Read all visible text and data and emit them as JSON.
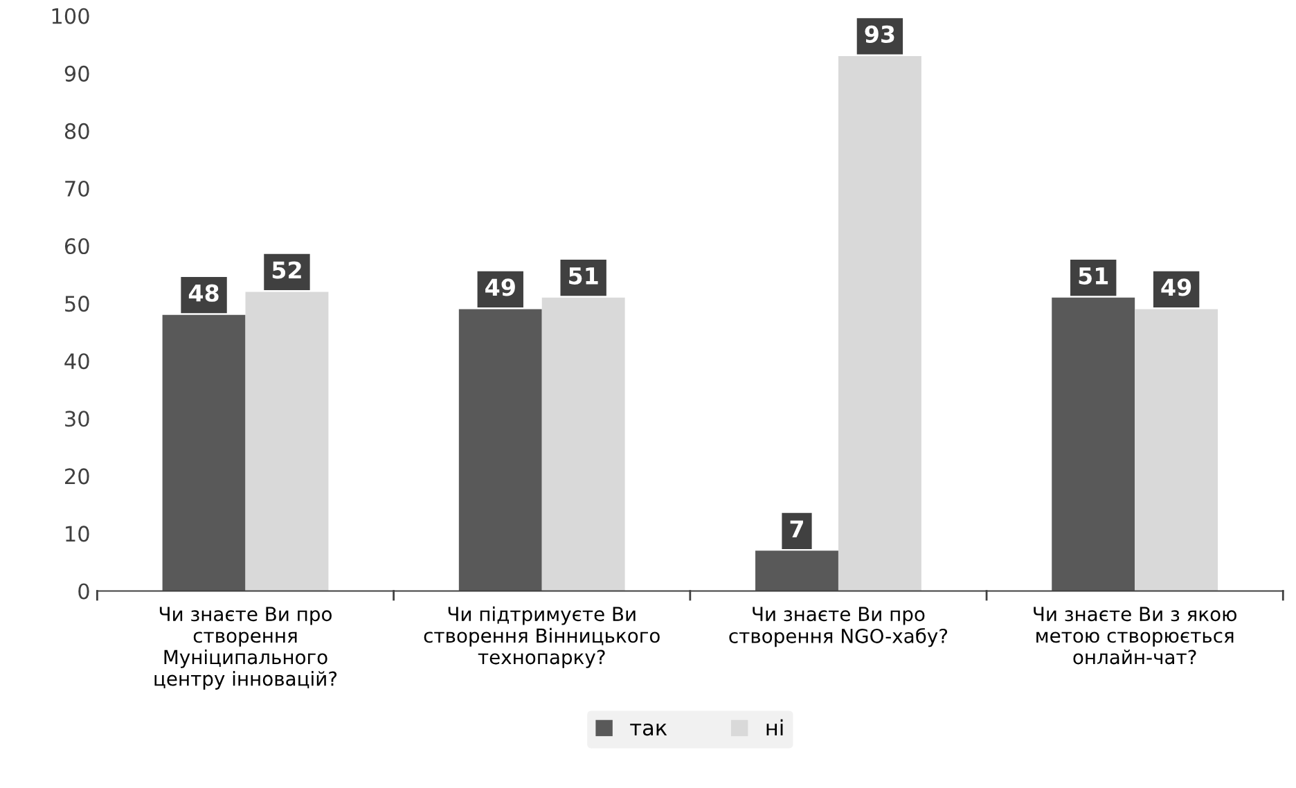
{
  "chart_data": {
    "type": "bar",
    "categories": [
      "Чи знаєте Ви про\nстворення\nМуніципального\nцентру інновацій?",
      "Чи підтримуєте Ви\nстворення Вінницького\nтехнопарку?",
      "Чи знаєте Ви про\nстворення NGO-хабу?",
      "Чи знаєте Ви з якою\nметою створюється\nонлайн-чат?"
    ],
    "series": [
      {
        "name": "так",
        "color": "#595959",
        "values": [
          48,
          49,
          7,
          51
        ]
      },
      {
        "name": "ні",
        "color": "#d9d9d9",
        "values": [
          52,
          51,
          93,
          49
        ]
      }
    ],
    "ylim": [
      0,
      100
    ],
    "yticks": [
      0,
      10,
      20,
      30,
      40,
      50,
      60,
      70,
      80,
      90,
      100
    ],
    "data_labels": true,
    "grid": false,
    "legend": "bottom"
  }
}
